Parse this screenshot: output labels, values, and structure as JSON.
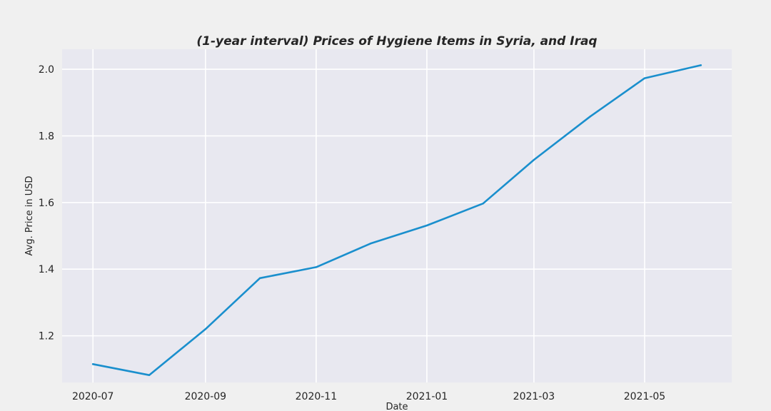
{
  "chart_data": {
    "type": "line",
    "title": "(1-year interval) Prices of Hygiene Items in Syria, and Iraq",
    "xlabel": "Date",
    "ylabel": "Avg. Price in USD",
    "x": [
      "2020-07-01",
      "2020-08-01",
      "2020-09-01",
      "2020-10-01",
      "2020-11-01",
      "2020-12-01",
      "2021-01-01",
      "2021-02-01",
      "2021-03-01",
      "2021-04-01",
      "2021-05-01",
      "2021-06-01"
    ],
    "series": [
      {
        "name": "",
        "color": "#1a8fcd",
        "values": [
          1.115,
          1.082,
          1.22,
          1.373,
          1.406,
          1.477,
          1.531,
          1.597,
          1.728,
          1.858,
          1.973,
          2.012
        ]
      }
    ],
    "x_ticks": [
      "2020-07",
      "2020-09",
      "2020-11",
      "2021-01",
      "2021-03",
      "2021-05"
    ],
    "y_ticks": [
      "1.2",
      "1.4",
      "1.6",
      "1.8",
      "2.0"
    ],
    "xlim": [
      "2020-06-14",
      "2021-06-18"
    ],
    "ylim": [
      1.06,
      2.06
    ],
    "grid": true,
    "background_color": "#e8e8f0",
    "grid_color": "#ffffff"
  }
}
